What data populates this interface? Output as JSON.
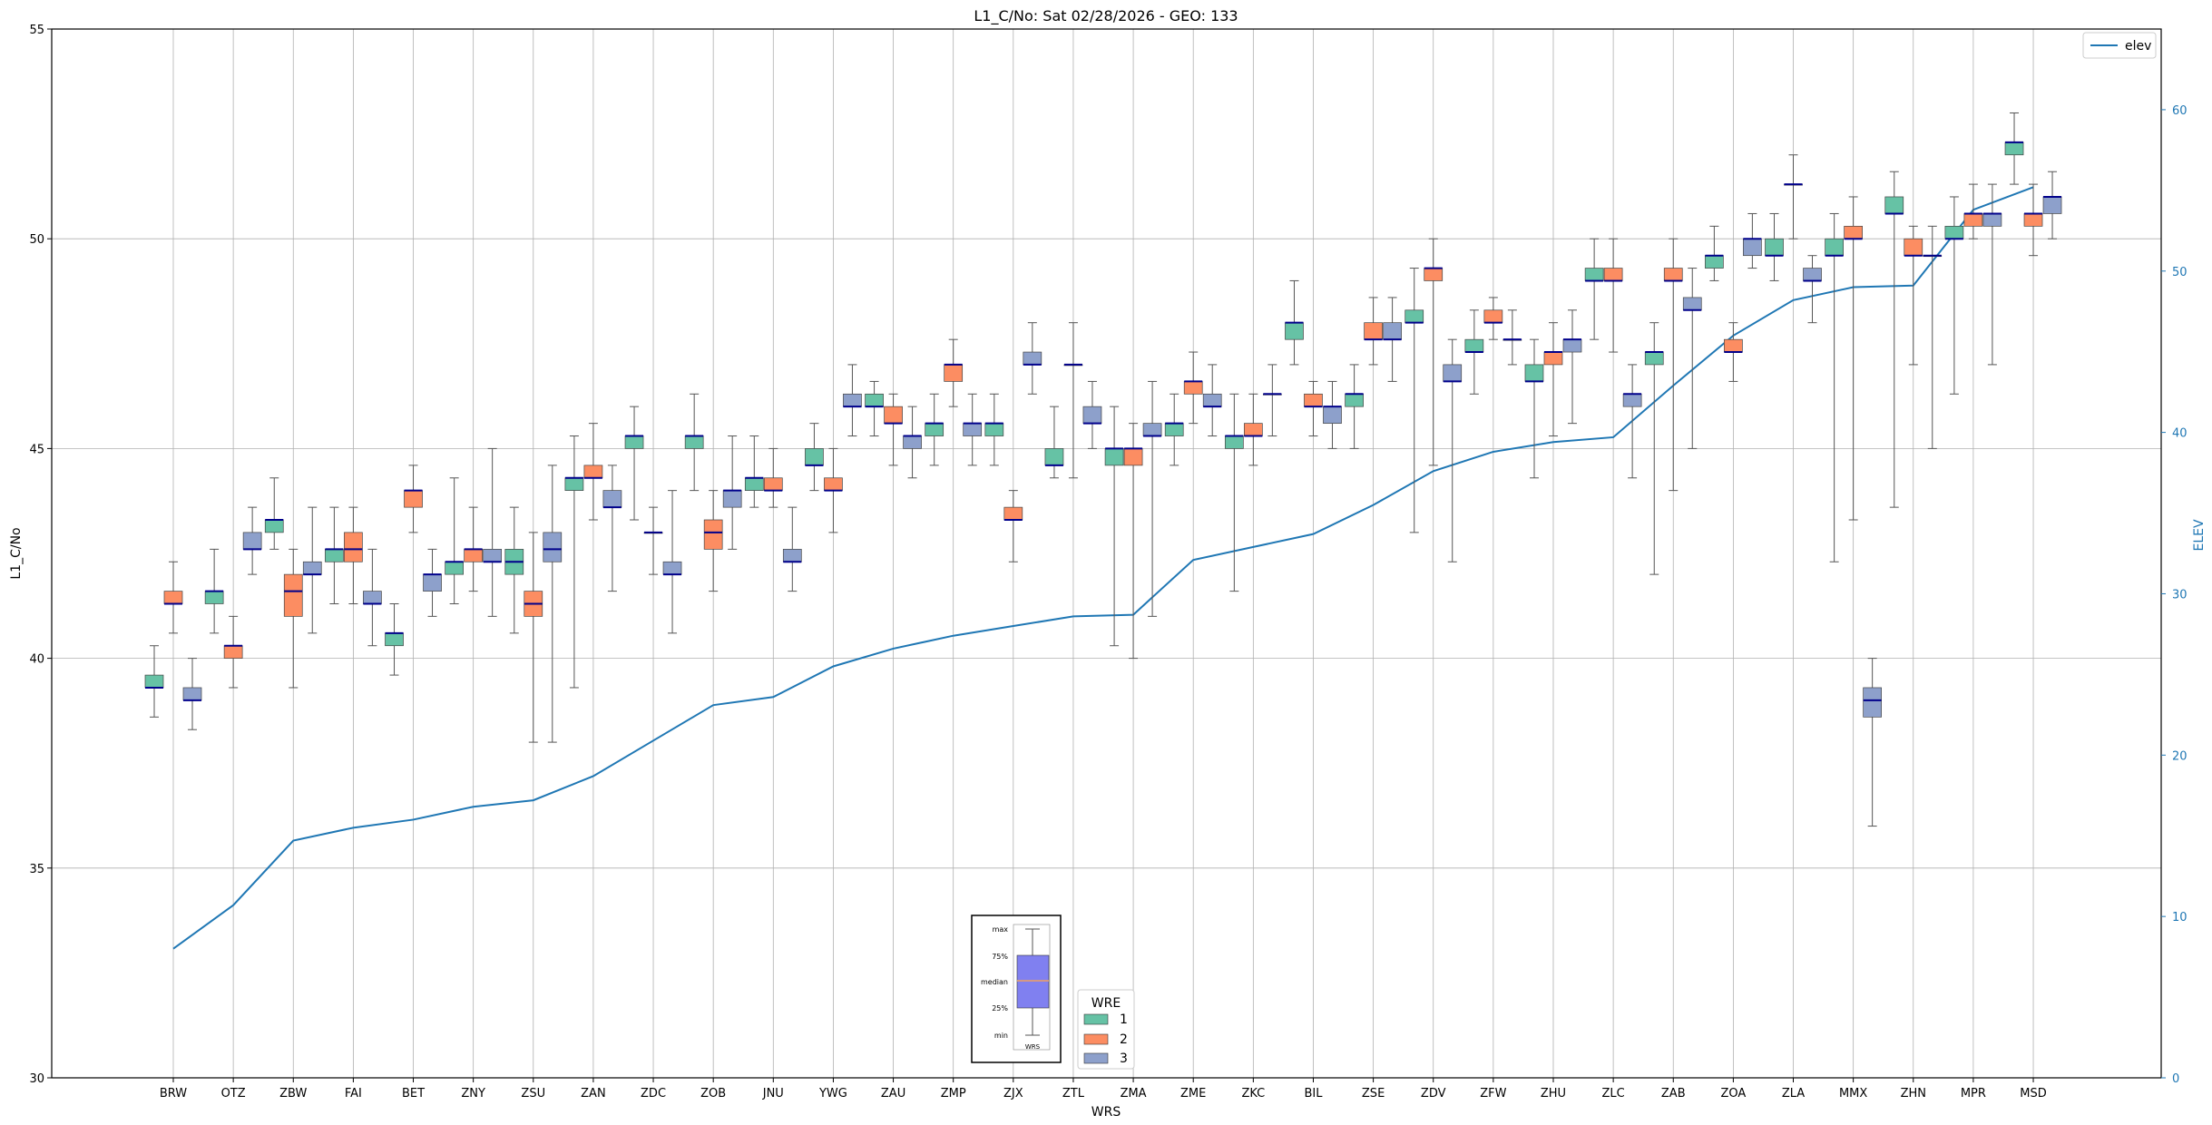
{
  "chart_data": {
    "type": "box",
    "title": "L1_C/No: Sat 02/28/2026 - GEO: 133",
    "xlabel": "WRS",
    "ylabel": "L1_C/No",
    "y2label": "ELEV",
    "ylim": [
      30,
      55
    ],
    "y2lim": [
      0,
      65
    ],
    "yticks": [
      30,
      35,
      40,
      45,
      50,
      55
    ],
    "y2ticks": [
      0,
      10,
      20,
      30,
      40,
      50,
      60
    ],
    "grid": true,
    "categories": [
      "BRW",
      "OTZ",
      "ZBW",
      "FAI",
      "BET",
      "ZNY",
      "ZSU",
      "ZAN",
      "ZDC",
      "ZOB",
      "JNU",
      "YWG",
      "ZAU",
      "ZMP",
      "ZJX",
      "ZTL",
      "ZMA",
      "ZME",
      "ZKC",
      "BIL",
      "ZSE",
      "ZDV",
      "ZFW",
      "ZHU",
      "ZLC",
      "ZAB",
      "ZOA",
      "ZLA",
      "MMX",
      "ZHN",
      "MPR",
      "MSD"
    ],
    "colors": {
      "1": "#66c2a5",
      "2": "#fc8d62",
      "3": "#8da0cb",
      "median": "#00008b",
      "elev": "#1f77b4",
      "whisker": "#555555"
    },
    "wre_legend": {
      "title": "WRE",
      "entries": [
        "1",
        "2",
        "3"
      ]
    },
    "elev_legend": "elev",
    "inset": {
      "labels": [
        "max",
        "75%",
        "median",
        "25%",
        "min"
      ],
      "xlabel": "WRS",
      "box_color": "#8080f0",
      "median_color": "#f0a060"
    },
    "boxes": [
      {
        "wrs": "BRW",
        "wre": 1,
        "min": 38.6,
        "q1": 39.3,
        "median": 39.3,
        "q3": 39.6,
        "max": 40.3
      },
      {
        "wrs": "BRW",
        "wre": 2,
        "min": 40.6,
        "q1": 41.3,
        "median": 41.3,
        "q3": 41.6,
        "max": 42.3
      },
      {
        "wrs": "BRW",
        "wre": 3,
        "min": 38.3,
        "q1": 39.0,
        "median": 39.0,
        "q3": 39.3,
        "max": 40.0
      },
      {
        "wrs": "OTZ",
        "wre": 1,
        "min": 40.6,
        "q1": 41.3,
        "median": 41.6,
        "q3": 41.6,
        "max": 42.6
      },
      {
        "wrs": "OTZ",
        "wre": 2,
        "min": 39.3,
        "q1": 40.0,
        "median": 40.3,
        "q3": 40.3,
        "max": 41.0
      },
      {
        "wrs": "OTZ",
        "wre": 3,
        "min": 42.0,
        "q1": 42.6,
        "median": 42.6,
        "q3": 43.0,
        "max": 43.6
      },
      {
        "wrs": "ZBW",
        "wre": 1,
        "min": 42.6,
        "q1": 43.0,
        "median": 43.3,
        "q3": 43.3,
        "max": 44.3
      },
      {
        "wrs": "ZBW",
        "wre": 2,
        "min": 39.3,
        "q1": 41.0,
        "median": 41.6,
        "q3": 42.0,
        "max": 42.6
      },
      {
        "wrs": "ZBW",
        "wre": 3,
        "min": 40.6,
        "q1": 42.0,
        "median": 42.0,
        "q3": 42.3,
        "max": 43.6
      },
      {
        "wrs": "FAI",
        "wre": 1,
        "min": 41.3,
        "q1": 42.3,
        "median": 42.6,
        "q3": 42.6,
        "max": 43.6
      },
      {
        "wrs": "FAI",
        "wre": 2,
        "min": 41.3,
        "q1": 42.3,
        "median": 42.6,
        "q3": 43.0,
        "max": 43.6
      },
      {
        "wrs": "FAI",
        "wre": 3,
        "min": 40.3,
        "q1": 41.3,
        "median": 41.3,
        "q3": 41.6,
        "max": 42.6
      },
      {
        "wrs": "BET",
        "wre": 1,
        "min": 39.6,
        "q1": 40.3,
        "median": 40.6,
        "q3": 40.6,
        "max": 41.3
      },
      {
        "wrs": "BET",
        "wre": 2,
        "min": 43.0,
        "q1": 43.6,
        "median": 44.0,
        "q3": 44.0,
        "max": 44.6
      },
      {
        "wrs": "BET",
        "wre": 3,
        "min": 41.0,
        "q1": 41.6,
        "median": 42.0,
        "q3": 42.0,
        "max": 42.6
      },
      {
        "wrs": "ZNY",
        "wre": 1,
        "min": 41.3,
        "q1": 42.0,
        "median": 42.3,
        "q3": 42.3,
        "max": 44.3
      },
      {
        "wrs": "ZNY",
        "wre": 2,
        "min": 41.6,
        "q1": 42.3,
        "median": 42.6,
        "q3": 42.6,
        "max": 43.6
      },
      {
        "wrs": "ZNY",
        "wre": 3,
        "min": 41.0,
        "q1": 42.3,
        "median": 42.3,
        "q3": 42.6,
        "max": 45.0
      },
      {
        "wrs": "ZSU",
        "wre": 1,
        "min": 40.6,
        "q1": 42.0,
        "median": 42.3,
        "q3": 42.6,
        "max": 43.6
      },
      {
        "wrs": "ZSU",
        "wre": 2,
        "min": 38.0,
        "q1": 41.0,
        "median": 41.3,
        "q3": 41.6,
        "max": 43.0
      },
      {
        "wrs": "ZSU",
        "wre": 3,
        "min": 38.0,
        "q1": 42.3,
        "median": 42.6,
        "q3": 43.0,
        "max": 44.6
      },
      {
        "wrs": "ZAN",
        "wre": 1,
        "min": 39.3,
        "q1": 44.0,
        "median": 44.3,
        "q3": 44.3,
        "max": 45.3
      },
      {
        "wrs": "ZAN",
        "wre": 2,
        "min": 43.3,
        "q1": 44.3,
        "median": 44.3,
        "q3": 44.6,
        "max": 45.6
      },
      {
        "wrs": "ZAN",
        "wre": 3,
        "min": 41.6,
        "q1": 43.6,
        "median": 43.6,
        "q3": 44.0,
        "max": 44.6
      },
      {
        "wrs": "ZDC",
        "wre": 1,
        "min": 43.3,
        "q1": 45.0,
        "median": 45.3,
        "q3": 45.3,
        "max": 46.0
      },
      {
        "wrs": "ZDC",
        "wre": 2,
        "min": 42.0,
        "q1": 43.0,
        "median": 43.0,
        "q3": 43.0,
        "max": 43.6
      },
      {
        "wrs": "ZDC",
        "wre": 3,
        "min": 40.6,
        "q1": 42.0,
        "median": 42.0,
        "q3": 42.3,
        "max": 44.0
      },
      {
        "wrs": "ZOB",
        "wre": 1,
        "min": 44.0,
        "q1": 45.0,
        "median": 45.3,
        "q3": 45.3,
        "max": 46.3
      },
      {
        "wrs": "ZOB",
        "wre": 2,
        "min": 41.6,
        "q1": 42.6,
        "median": 43.0,
        "q3": 43.3,
        "max": 44.0
      },
      {
        "wrs": "ZOB",
        "wre": 3,
        "min": 42.6,
        "q1": 43.6,
        "median": 44.0,
        "q3": 44.0,
        "max": 45.3
      },
      {
        "wrs": "JNU",
        "wre": 1,
        "min": 43.6,
        "q1": 44.0,
        "median": 44.3,
        "q3": 44.3,
        "max": 45.3
      },
      {
        "wrs": "JNU",
        "wre": 2,
        "min": 43.6,
        "q1": 44.0,
        "median": 44.0,
        "q3": 44.3,
        "max": 45.0
      },
      {
        "wrs": "JNU",
        "wre": 3,
        "min": 41.6,
        "q1": 42.3,
        "median": 42.3,
        "q3": 42.6,
        "max": 43.6
      },
      {
        "wrs": "YWG",
        "wre": 1,
        "min": 44.0,
        "q1": 44.6,
        "median": 44.6,
        "q3": 45.0,
        "max": 45.6
      },
      {
        "wrs": "YWG",
        "wre": 2,
        "min": 43.0,
        "q1": 44.0,
        "median": 44.0,
        "q3": 44.3,
        "max": 45.0
      },
      {
        "wrs": "YWG",
        "wre": 3,
        "min": 45.3,
        "q1": 46.0,
        "median": 46.0,
        "q3": 46.3,
        "max": 47.0
      },
      {
        "wrs": "ZAU",
        "wre": 1,
        "min": 45.3,
        "q1": 46.0,
        "median": 46.0,
        "q3": 46.3,
        "max": 46.6
      },
      {
        "wrs": "ZAU",
        "wre": 2,
        "min": 44.6,
        "q1": 45.6,
        "median": 45.6,
        "q3": 46.0,
        "max": 46.3
      },
      {
        "wrs": "ZAU",
        "wre": 3,
        "min": 44.3,
        "q1": 45.0,
        "median": 45.3,
        "q3": 45.3,
        "max": 46.0
      },
      {
        "wrs": "ZMP",
        "wre": 1,
        "min": 44.6,
        "q1": 45.3,
        "median": 45.6,
        "q3": 45.6,
        "max": 46.3
      },
      {
        "wrs": "ZMP",
        "wre": 2,
        "min": 46.0,
        "q1": 46.6,
        "median": 47.0,
        "q3": 47.0,
        "max": 47.6
      },
      {
        "wrs": "ZMP",
        "wre": 3,
        "min": 44.6,
        "q1": 45.3,
        "median": 45.6,
        "q3": 45.6,
        "max": 46.3
      },
      {
        "wrs": "ZJX",
        "wre": 1,
        "min": 44.6,
        "q1": 45.3,
        "median": 45.6,
        "q3": 45.6,
        "max": 46.3
      },
      {
        "wrs": "ZJX",
        "wre": 2,
        "min": 42.3,
        "q1": 43.3,
        "median": 43.3,
        "q3": 43.6,
        "max": 44.0
      },
      {
        "wrs": "ZJX",
        "wre": 3,
        "min": 46.3,
        "q1": 47.0,
        "median": 47.0,
        "q3": 47.3,
        "max": 48.0
      },
      {
        "wrs": "ZTL",
        "wre": 1,
        "min": 44.3,
        "q1": 44.6,
        "median": 44.6,
        "q3": 45.0,
        "max": 46.0
      },
      {
        "wrs": "ZTL",
        "wre": 2,
        "min": 44.3,
        "q1": 47.0,
        "median": 47.0,
        "q3": 47.0,
        "max": 48.0
      },
      {
        "wrs": "ZTL",
        "wre": 3,
        "min": 45.0,
        "q1": 45.6,
        "median": 45.6,
        "q3": 46.0,
        "max": 46.6
      },
      {
        "wrs": "ZMA",
        "wre": 1,
        "min": 40.3,
        "q1": 44.6,
        "median": 45.0,
        "q3": 45.0,
        "max": 46.0
      },
      {
        "wrs": "ZMA",
        "wre": 2,
        "min": 40.0,
        "q1": 44.6,
        "median": 45.0,
        "q3": 45.0,
        "max": 45.6
      },
      {
        "wrs": "ZMA",
        "wre": 3,
        "min": 41.0,
        "q1": 45.3,
        "median": 45.3,
        "q3": 45.6,
        "max": 46.6
      },
      {
        "wrs": "ZME",
        "wre": 1,
        "min": 44.6,
        "q1": 45.3,
        "median": 45.6,
        "q3": 45.6,
        "max": 46.3
      },
      {
        "wrs": "ZME",
        "wre": 2,
        "min": 45.6,
        "q1": 46.3,
        "median": 46.6,
        "q3": 46.6,
        "max": 47.3
      },
      {
        "wrs": "ZME",
        "wre": 3,
        "min": 45.3,
        "q1": 46.0,
        "median": 46.0,
        "q3": 46.3,
        "max": 47.0
      },
      {
        "wrs": "ZKC",
        "wre": 1,
        "min": 41.6,
        "q1": 45.0,
        "median": 45.3,
        "q3": 45.3,
        "max": 46.3
      },
      {
        "wrs": "ZKC",
        "wre": 2,
        "min": 44.6,
        "q1": 45.3,
        "median": 45.3,
        "q3": 45.6,
        "max": 46.3
      },
      {
        "wrs": "ZKC",
        "wre": 3,
        "min": 45.3,
        "q1": 46.3,
        "median": 46.3,
        "q3": 46.3,
        "max": 47.0
      },
      {
        "wrs": "BIL",
        "wre": 1,
        "min": 47.0,
        "q1": 47.6,
        "median": 48.0,
        "q3": 48.0,
        "max": 49.0
      },
      {
        "wrs": "BIL",
        "wre": 2,
        "min": 45.3,
        "q1": 46.0,
        "median": 46.0,
        "q3": 46.3,
        "max": 46.6
      },
      {
        "wrs": "BIL",
        "wre": 3,
        "min": 45.0,
        "q1": 45.6,
        "median": 46.0,
        "q3": 46.0,
        "max": 46.6
      },
      {
        "wrs": "ZSE",
        "wre": 1,
        "min": 45.0,
        "q1": 46.0,
        "median": 46.3,
        "q3": 46.3,
        "max": 47.0
      },
      {
        "wrs": "ZSE",
        "wre": 2,
        "min": 47.0,
        "q1": 47.6,
        "median": 47.6,
        "q3": 48.0,
        "max": 48.6
      },
      {
        "wrs": "ZSE",
        "wre": 3,
        "min": 46.6,
        "q1": 47.6,
        "median": 47.6,
        "q3": 48.0,
        "max": 48.6
      },
      {
        "wrs": "ZDV",
        "wre": 1,
        "min": 43.0,
        "q1": 48.0,
        "median": 48.0,
        "q3": 48.3,
        "max": 49.3
      },
      {
        "wrs": "ZDV",
        "wre": 2,
        "min": 44.6,
        "q1": 49.0,
        "median": 49.3,
        "q3": 49.3,
        "max": 50.0
      },
      {
        "wrs": "ZDV",
        "wre": 3,
        "min": 42.3,
        "q1": 46.6,
        "median": 46.6,
        "q3": 47.0,
        "max": 47.6
      },
      {
        "wrs": "ZFW",
        "wre": 1,
        "min": 46.3,
        "q1": 47.3,
        "median": 47.3,
        "q3": 47.6,
        "max": 48.3
      },
      {
        "wrs": "ZFW",
        "wre": 2,
        "min": 47.6,
        "q1": 48.0,
        "median": 48.0,
        "q3": 48.3,
        "max": 48.6
      },
      {
        "wrs": "ZFW",
        "wre": 3,
        "min": 47.0,
        "q1": 47.6,
        "median": 47.6,
        "q3": 47.6,
        "max": 48.3
      },
      {
        "wrs": "ZHU",
        "wre": 1,
        "min": 44.3,
        "q1": 46.6,
        "median": 46.6,
        "q3": 47.0,
        "max": 47.6
      },
      {
        "wrs": "ZHU",
        "wre": 2,
        "min": 45.3,
        "q1": 47.0,
        "median": 47.3,
        "q3": 47.3,
        "max": 48.0
      },
      {
        "wrs": "ZHU",
        "wre": 3,
        "min": 45.6,
        "q1": 47.3,
        "median": 47.6,
        "q3": 47.6,
        "max": 48.3
      },
      {
        "wrs": "ZLC",
        "wre": 1,
        "min": 47.6,
        "q1": 49.0,
        "median": 49.0,
        "q3": 49.3,
        "max": 50.0
      },
      {
        "wrs": "ZLC",
        "wre": 2,
        "min": 47.3,
        "q1": 49.0,
        "median": 49.0,
        "q3": 49.3,
        "max": 50.0
      },
      {
        "wrs": "ZLC",
        "wre": 3,
        "min": 44.3,
        "q1": 46.0,
        "median": 46.3,
        "q3": 46.3,
        "max": 47.0
      },
      {
        "wrs": "ZAB",
        "wre": 1,
        "min": 42.0,
        "q1": 47.0,
        "median": 47.3,
        "q3": 47.3,
        "max": 48.0
      },
      {
        "wrs": "ZAB",
        "wre": 2,
        "min": 44.0,
        "q1": 49.0,
        "median": 49.0,
        "q3": 49.3,
        "max": 50.0
      },
      {
        "wrs": "ZAB",
        "wre": 3,
        "min": 45.0,
        "q1": 48.3,
        "median": 48.3,
        "q3": 48.6,
        "max": 49.3
      },
      {
        "wrs": "ZOA",
        "wre": 1,
        "min": 49.0,
        "q1": 49.3,
        "median": 49.6,
        "q3": 49.6,
        "max": 50.3
      },
      {
        "wrs": "ZOA",
        "wre": 2,
        "min": 46.6,
        "q1": 47.3,
        "median": 47.3,
        "q3": 47.6,
        "max": 48.0
      },
      {
        "wrs": "ZOA",
        "wre": 3,
        "min": 49.3,
        "q1": 49.6,
        "median": 50.0,
        "q3": 50.0,
        "max": 50.6
      },
      {
        "wrs": "ZLA",
        "wre": 1,
        "min": 49.0,
        "q1": 49.6,
        "median": 49.6,
        "q3": 50.0,
        "max": 50.6
      },
      {
        "wrs": "ZLA",
        "wre": 2,
        "min": 50.0,
        "q1": 51.3,
        "median": 51.3,
        "q3": 51.3,
        "max": 52.0
      },
      {
        "wrs": "ZLA",
        "wre": 3,
        "min": 48.0,
        "q1": 49.0,
        "median": 49.0,
        "q3": 49.3,
        "max": 49.6
      },
      {
        "wrs": "MMX",
        "wre": 1,
        "min": 42.3,
        "q1": 49.6,
        "median": 49.6,
        "q3": 50.0,
        "max": 50.6
      },
      {
        "wrs": "MMX",
        "wre": 2,
        "min": 43.3,
        "q1": 50.0,
        "median": 50.0,
        "q3": 50.3,
        "max": 51.0
      },
      {
        "wrs": "MMX",
        "wre": 3,
        "min": 36.0,
        "q1": 38.6,
        "median": 39.0,
        "q3": 39.3,
        "max": 40.0
      },
      {
        "wrs": "ZHN",
        "wre": 1,
        "min": 43.6,
        "q1": 50.6,
        "median": 50.6,
        "q3": 51.0,
        "max": 51.6
      },
      {
        "wrs": "ZHN",
        "wre": 2,
        "min": 47.0,
        "q1": 49.6,
        "median": 49.6,
        "q3": 50.0,
        "max": 50.3
      },
      {
        "wrs": "ZHN",
        "wre": 3,
        "min": 45.0,
        "q1": 49.6,
        "median": 49.6,
        "q3": 49.6,
        "max": 50.3
      },
      {
        "wrs": "MPR",
        "wre": 1,
        "min": 46.3,
        "q1": 50.0,
        "median": 50.0,
        "q3": 50.3,
        "max": 51.0
      },
      {
        "wrs": "MPR",
        "wre": 2,
        "min": 50.0,
        "q1": 50.3,
        "median": 50.6,
        "q3": 50.6,
        "max": 51.3
      },
      {
        "wrs": "MPR",
        "wre": 3,
        "min": 47.0,
        "q1": 50.3,
        "median": 50.6,
        "q3": 50.6,
        "max": 51.3
      },
      {
        "wrs": "MSD",
        "wre": 1,
        "min": 51.3,
        "q1": 52.0,
        "median": 52.3,
        "q3": 52.3,
        "max": 53.0
      },
      {
        "wrs": "MSD",
        "wre": 2,
        "min": 49.6,
        "q1": 50.3,
        "median": 50.6,
        "q3": 50.6,
        "max": 51.3
      },
      {
        "wrs": "MSD",
        "wre": 3,
        "min": 50.0,
        "q1": 50.6,
        "median": 51.0,
        "q3": 51.0,
        "max": 51.6
      }
    ],
    "elev_series": {
      "name": "elev",
      "values": [
        8.0,
        10.7,
        14.7,
        15.5,
        16.0,
        16.8,
        17.2,
        18.7,
        20.9,
        23.1,
        23.6,
        25.5,
        26.6,
        27.4,
        28.0,
        28.6,
        28.7,
        32.1,
        32.9,
        33.7,
        35.5,
        37.6,
        38.8,
        39.4,
        39.7,
        42.9,
        46.0,
        48.2,
        49.0,
        49.1,
        53.8,
        55.2
      ]
    }
  }
}
